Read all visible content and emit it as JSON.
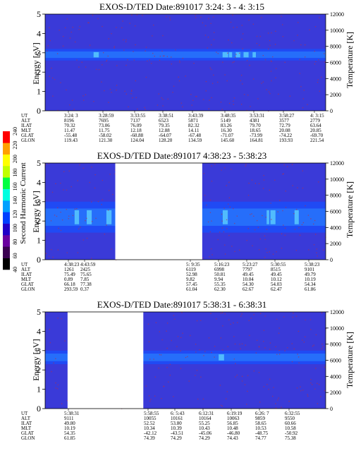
{
  "chart_data": [
    {
      "type": "heatmap",
      "title": "EXOS-D/TED   Date:891017  3:24: 3 - 4: 3:15",
      "ylabel": "Energy [eV]",
      "y2label": "Temperature [K]",
      "ylim": [
        0,
        5
      ],
      "y2lim": [
        0,
        12000
      ],
      "yticks": [
        "0",
        "1",
        "2",
        "3",
        "4",
        "5"
      ],
      "y2ticks": [
        "0",
        "2000",
        "4000",
        "6000",
        "8000",
        "10000",
        "12000"
      ],
      "gaps": [],
      "band": {
        "low": 2.6,
        "high": 3.2
      },
      "ephem_labels": [
        "UT",
        "ALT",
        "ILAT",
        "MLT",
        "GLAT",
        "GLON"
      ],
      "ephem": [
        [
          "3:24: 3",
          "8196",
          "70.32",
          "11.47",
          "-55.48",
          "119.43"
        ],
        [
          "3:28:59",
          "7695",
          "73.06",
          "11.75",
          "-58.02",
          "121.30"
        ],
        [
          "3:33:55",
          "7137",
          "76.09",
          "12.18",
          "-60.88",
          "124.04"
        ],
        [
          "3:38:51",
          "6523",
          "79.35",
          "12.88",
          "-64.07",
          "128.20"
        ],
        [
          "3:43:39",
          "5871",
          "82.32",
          "14.11",
          "-67.48",
          "134.59"
        ],
        [
          "3:48:35",
          "5149",
          "83.26",
          "16.30",
          "-71.07",
          "145.60"
        ],
        [
          "3:53:31",
          "4381",
          "79.70",
          "18.65",
          "-73.99",
          "164.81"
        ],
        [
          "3:58:27",
          "3577",
          "72.79",
          "20.08",
          "-74.22",
          "193.93"
        ],
        [
          "4: 3:15",
          "2779",
          "63.64",
          "20.85",
          "-69.70",
          "221.54"
        ]
      ]
    },
    {
      "type": "heatmap",
      "title": "EXOS-D/TED   Date:891017  4:38:23 - 5:38:23",
      "ylabel": "Energy [eV]",
      "y2label": "Temperature [K]",
      "ylim": [
        0,
        5
      ],
      "y2lim": [
        0,
        12000
      ],
      "yticks": [
        "0",
        "1",
        "2",
        "3",
        "4",
        "5"
      ],
      "y2ticks": [
        "0",
        "2000",
        "4000",
        "6000",
        "8000",
        "10000",
        "12000"
      ],
      "gaps": [
        [
          0.25,
          0.56
        ]
      ],
      "band": {
        "low": 1.4,
        "high": 3.0
      },
      "ephem_labels": [
        "UT",
        "ALT",
        "ILAT",
        "MLT",
        "GLAT",
        "GLON"
      ],
      "ephem": [
        [
          "4:38:23",
          "1261",
          "75.49",
          "0.89",
          "66.18",
          "293.59"
        ],
        [
          "4:43:59",
          "2425",
          "75.65",
          "7.85",
          "77.38",
          "0.37"
        ],
        [
          "5: 9:35",
          "6119",
          "52.98",
          "9.82",
          "57.45",
          "61.04"
        ],
        [
          "5:16:23",
          "6998",
          "50.81",
          "9.94",
          "55.35",
          "62.30"
        ],
        [
          "5:23:27",
          "7797",
          "49.45",
          "10.04",
          "54.30",
          "62.67"
        ],
        [
          "5:30:55",
          "8515",
          "49.45",
          "10.12",
          "54.03",
          "62.47"
        ],
        [
          "5:38:23",
          "9101",
          "49.79",
          "10.19",
          "54.34",
          "61.86"
        ]
      ]
    },
    {
      "type": "heatmap",
      "title": "EXOS-D/TED   Date:891017  5:38:31 - 6:38:31",
      "ylabel": "Energy [eV]",
      "y2label": "Temperature [K]",
      "ylim": [
        0,
        5
      ],
      "y2lim": [
        0,
        12000
      ],
      "yticks": [
        "0",
        "1",
        "2",
        "3",
        "4",
        "5"
      ],
      "y2ticks": [
        "0",
        "2000",
        "4000",
        "6000",
        "8000",
        "10000",
        "12000"
      ],
      "gaps": [
        [
          0.08,
          0.35
        ]
      ],
      "band": {
        "low": 2.3,
        "high": 3.0
      },
      "ephem_labels": [
        "UT",
        "ALT",
        "ILAT",
        "MLT",
        "GLAT",
        "GLON"
      ],
      "ephem": [
        [
          "5:38:31",
          "9111",
          "49.80",
          "10.19",
          "54.35",
          "61.85"
        ],
        [
          "5:58:55",
          "10055",
          "52.52",
          "10.34",
          "-42.12",
          "74.39"
        ],
        [
          "6: 5:43",
          "10161",
          "53.80",
          "10.39",
          "-43.51",
          "74.29"
        ],
        [
          "6:12:31",
          "10164",
          "55.25",
          "10.43",
          "-45.06",
          "74.29"
        ],
        [
          "6:19:19",
          "10063",
          "56.85",
          "10.48",
          "-46.80",
          "74.43"
        ],
        [
          "6:26: 7",
          "9859",
          "58.65",
          "10.53",
          "-48.75",
          "74.77"
        ],
        [
          "6:32:55",
          "9550",
          "60.66",
          "10.58",
          "-50.92",
          "75.38"
        ]
      ]
    }
  ],
  "colorbar": {
    "label": "Second Harmonic Current",
    "ticks": [
      "40",
      "60",
      "80",
      "100",
      "120",
      "140",
      "160",
      "180",
      "200",
      "220",
      "240"
    ],
    "colors": [
      "#000000",
      "#3a0050",
      "#6a00a0",
      "#2000c8",
      "#0040ff",
      "#00a0ff",
      "#00ffe0",
      "#00ff40",
      "#c0ff00",
      "#ffff00",
      "#ffa000",
      "#ff0000"
    ]
  },
  "colors": {
    "background": "#3a3ad8",
    "band_edge": "#1f4bf5",
    "band_core": "#2b8cff",
    "hot": "#6ef0ff",
    "noise": "#b0304a"
  }
}
